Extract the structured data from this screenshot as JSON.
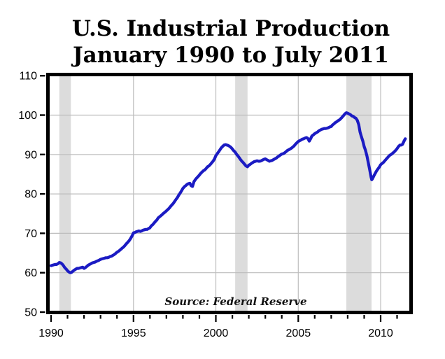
{
  "title": {
    "line1": "U.S. Industrial Production",
    "line2": "January 1990 to July 2011"
  },
  "source_note": "Source: Federal Reserve",
  "colors": {
    "line": "#1b1bc3",
    "recession_band": "#dcdcdc",
    "gridline": "#bdbdbd",
    "axis": "#000000",
    "background": "#ffffff"
  },
  "chart_data": {
    "type": "line",
    "title": "U.S. Industrial Production January 1990 to July 2011",
    "source": "Federal Reserve",
    "xlabel": "",
    "ylabel": "",
    "x_axis": {
      "first_year": 1990,
      "last_year": 2011,
      "data_end": 2011.5,
      "major_ticks": [
        1990,
        1995,
        2000,
        2005,
        2010
      ],
      "tick_labels": [
        "1990",
        "1995",
        "2000",
        "2005",
        "2010"
      ],
      "minor_tick_interval": 1
    },
    "y_axis": {
      "min": 50,
      "max": 110,
      "ticks": [
        50,
        60,
        70,
        80,
        90,
        100,
        110
      ],
      "tick_labels": [
        "50",
        "60",
        "70",
        "80",
        "90",
        "100",
        "110"
      ]
    },
    "gridlines": {
      "horizontal_values": [
        60,
        70,
        80,
        90,
        100
      ],
      "vertical_years": [
        1995,
        2000,
        2005,
        2010
      ]
    },
    "recession_bands": [
      {
        "start": 1990.5,
        "end": 1991.2
      },
      {
        "start": 2001.17,
        "end": 2001.92
      },
      {
        "start": 2007.92,
        "end": 2009.45
      }
    ],
    "series": [
      {
        "name": "U.S. Industrial Production",
        "points": [
          [
            1990.0,
            61.8
          ],
          [
            1990.08,
            61.9
          ],
          [
            1990.17,
            62.0
          ],
          [
            1990.25,
            62.1
          ],
          [
            1990.33,
            62.1
          ],
          [
            1990.42,
            62.3
          ],
          [
            1990.5,
            62.6
          ],
          [
            1990.58,
            62.5
          ],
          [
            1990.67,
            62.2
          ],
          [
            1990.75,
            61.8
          ],
          [
            1990.83,
            61.3
          ],
          [
            1990.92,
            60.9
          ],
          [
            1991.0,
            60.5
          ],
          [
            1991.08,
            60.2
          ],
          [
            1991.17,
            60.0
          ],
          [
            1991.25,
            60.1
          ],
          [
            1991.33,
            60.4
          ],
          [
            1991.42,
            60.7
          ],
          [
            1991.5,
            60.9
          ],
          [
            1991.58,
            61.1
          ],
          [
            1991.67,
            61.1
          ],
          [
            1991.75,
            61.2
          ],
          [
            1991.83,
            61.3
          ],
          [
            1991.92,
            61.4
          ],
          [
            1992.0,
            61.1
          ],
          [
            1992.08,
            61.3
          ],
          [
            1992.17,
            61.6
          ],
          [
            1992.25,
            61.9
          ],
          [
            1992.33,
            62.1
          ],
          [
            1992.42,
            62.3
          ],
          [
            1992.5,
            62.5
          ],
          [
            1992.58,
            62.6
          ],
          [
            1992.67,
            62.7
          ],
          [
            1992.75,
            62.9
          ],
          [
            1992.83,
            63.0
          ],
          [
            1992.92,
            63.2
          ],
          [
            1993.0,
            63.4
          ],
          [
            1993.08,
            63.5
          ],
          [
            1993.17,
            63.6
          ],
          [
            1993.25,
            63.7
          ],
          [
            1993.33,
            63.8
          ],
          [
            1993.42,
            63.8
          ],
          [
            1993.5,
            63.9
          ],
          [
            1993.58,
            64.1
          ],
          [
            1993.67,
            64.2
          ],
          [
            1993.75,
            64.4
          ],
          [
            1993.83,
            64.6
          ],
          [
            1993.92,
            64.9
          ],
          [
            1994.0,
            65.2
          ],
          [
            1994.08,
            65.4
          ],
          [
            1994.17,
            65.7
          ],
          [
            1994.25,
            66.0
          ],
          [
            1994.33,
            66.3
          ],
          [
            1994.42,
            66.6
          ],
          [
            1994.5,
            67.0
          ],
          [
            1994.58,
            67.4
          ],
          [
            1994.67,
            67.8
          ],
          [
            1994.75,
            68.2
          ],
          [
            1994.83,
            68.7
          ],
          [
            1994.92,
            69.4
          ],
          [
            1995.0,
            70.1
          ],
          [
            1995.08,
            70.2
          ],
          [
            1995.17,
            70.4
          ],
          [
            1995.25,
            70.5
          ],
          [
            1995.33,
            70.6
          ],
          [
            1995.42,
            70.5
          ],
          [
            1995.5,
            70.6
          ],
          [
            1995.58,
            70.8
          ],
          [
            1995.67,
            70.9
          ],
          [
            1995.75,
            71.0
          ],
          [
            1995.83,
            71.0
          ],
          [
            1995.92,
            71.2
          ],
          [
            1996.0,
            71.4
          ],
          [
            1996.08,
            71.9
          ],
          [
            1996.17,
            72.2
          ],
          [
            1996.25,
            72.6
          ],
          [
            1996.33,
            73.0
          ],
          [
            1996.42,
            73.4
          ],
          [
            1996.5,
            73.9
          ],
          [
            1996.58,
            74.2
          ],
          [
            1996.67,
            74.5
          ],
          [
            1996.75,
            74.8
          ],
          [
            1996.83,
            75.1
          ],
          [
            1996.92,
            75.4
          ],
          [
            1997.0,
            75.7
          ],
          [
            1997.08,
            76.0
          ],
          [
            1997.17,
            76.4
          ],
          [
            1997.25,
            76.8
          ],
          [
            1997.33,
            77.2
          ],
          [
            1997.42,
            77.6
          ],
          [
            1997.5,
            78.1
          ],
          [
            1997.58,
            78.6
          ],
          [
            1997.67,
            79.1
          ],
          [
            1997.75,
            79.7
          ],
          [
            1997.83,
            80.2
          ],
          [
            1997.92,
            80.8
          ],
          [
            1998.0,
            81.4
          ],
          [
            1998.08,
            81.8
          ],
          [
            1998.17,
            82.1
          ],
          [
            1998.25,
            82.4
          ],
          [
            1998.33,
            82.6
          ],
          [
            1998.42,
            82.7
          ],
          [
            1998.5,
            82.1
          ],
          [
            1998.58,
            81.9
          ],
          [
            1998.67,
            83.1
          ],
          [
            1998.75,
            83.6
          ],
          [
            1998.83,
            84.0
          ],
          [
            1998.92,
            84.4
          ],
          [
            1999.0,
            84.8
          ],
          [
            1999.08,
            85.2
          ],
          [
            1999.17,
            85.6
          ],
          [
            1999.25,
            85.9
          ],
          [
            1999.33,
            86.1
          ],
          [
            1999.42,
            86.5
          ],
          [
            1999.5,
            86.9
          ],
          [
            1999.58,
            87.1
          ],
          [
            1999.67,
            87.5
          ],
          [
            1999.75,
            87.9
          ],
          [
            1999.83,
            88.3
          ],
          [
            1999.92,
            88.9
          ],
          [
            2000.0,
            89.7
          ],
          [
            2000.08,
            90.2
          ],
          [
            2000.17,
            90.7
          ],
          [
            2000.25,
            91.2
          ],
          [
            2000.33,
            91.7
          ],
          [
            2000.42,
            92.1
          ],
          [
            2000.5,
            92.4
          ],
          [
            2000.58,
            92.5
          ],
          [
            2000.67,
            92.4
          ],
          [
            2000.75,
            92.3
          ],
          [
            2000.83,
            92.1
          ],
          [
            2000.92,
            91.8
          ],
          [
            2001.0,
            91.4
          ],
          [
            2001.08,
            91.0
          ],
          [
            2001.17,
            90.6
          ],
          [
            2001.25,
            90.1
          ],
          [
            2001.33,
            89.7
          ],
          [
            2001.42,
            89.2
          ],
          [
            2001.5,
            88.7
          ],
          [
            2001.58,
            88.3
          ],
          [
            2001.67,
            87.9
          ],
          [
            2001.75,
            87.5
          ],
          [
            2001.83,
            87.1
          ],
          [
            2001.92,
            86.9
          ],
          [
            2002.0,
            87.3
          ],
          [
            2002.08,
            87.5
          ],
          [
            2002.17,
            87.8
          ],
          [
            2002.25,
            88.0
          ],
          [
            2002.33,
            88.2
          ],
          [
            2002.42,
            88.3
          ],
          [
            2002.5,
            88.4
          ],
          [
            2002.58,
            88.3
          ],
          [
            2002.67,
            88.3
          ],
          [
            2002.75,
            88.4
          ],
          [
            2002.83,
            88.6
          ],
          [
            2002.92,
            88.8
          ],
          [
            2003.0,
            88.9
          ],
          [
            2003.08,
            88.7
          ],
          [
            2003.17,
            88.5
          ],
          [
            2003.25,
            88.3
          ],
          [
            2003.33,
            88.4
          ],
          [
            2003.42,
            88.5
          ],
          [
            2003.5,
            88.7
          ],
          [
            2003.58,
            88.9
          ],
          [
            2003.67,
            89.1
          ],
          [
            2003.75,
            89.4
          ],
          [
            2003.83,
            89.6
          ],
          [
            2003.92,
            89.9
          ],
          [
            2004.0,
            90.1
          ],
          [
            2004.08,
            90.2
          ],
          [
            2004.17,
            90.4
          ],
          [
            2004.25,
            90.7
          ],
          [
            2004.33,
            91.0
          ],
          [
            2004.42,
            91.2
          ],
          [
            2004.5,
            91.4
          ],
          [
            2004.58,
            91.6
          ],
          [
            2004.67,
            91.9
          ],
          [
            2004.75,
            92.2
          ],
          [
            2004.83,
            92.6
          ],
          [
            2004.92,
            93.0
          ],
          [
            2005.0,
            93.3
          ],
          [
            2005.08,
            93.5
          ],
          [
            2005.17,
            93.7
          ],
          [
            2005.25,
            93.9
          ],
          [
            2005.33,
            94.0
          ],
          [
            2005.42,
            94.2
          ],
          [
            2005.5,
            94.3
          ],
          [
            2005.58,
            94.1
          ],
          [
            2005.67,
            93.4
          ],
          [
            2005.75,
            94.0
          ],
          [
            2005.83,
            94.7
          ],
          [
            2005.92,
            95.0
          ],
          [
            2006.0,
            95.3
          ],
          [
            2006.08,
            95.5
          ],
          [
            2006.17,
            95.7
          ],
          [
            2006.25,
            96.0
          ],
          [
            2006.33,
            96.2
          ],
          [
            2006.42,
            96.4
          ],
          [
            2006.5,
            96.5
          ],
          [
            2006.58,
            96.6
          ],
          [
            2006.67,
            96.6
          ],
          [
            2006.75,
            96.7
          ],
          [
            2006.83,
            96.8
          ],
          [
            2006.92,
            97.0
          ],
          [
            2007.0,
            97.1
          ],
          [
            2007.08,
            97.5
          ],
          [
            2007.17,
            97.8
          ],
          [
            2007.25,
            98.1
          ],
          [
            2007.33,
            98.3
          ],
          [
            2007.42,
            98.6
          ],
          [
            2007.5,
            98.8
          ],
          [
            2007.58,
            99.1
          ],
          [
            2007.67,
            99.5
          ],
          [
            2007.75,
            99.9
          ],
          [
            2007.83,
            100.3
          ],
          [
            2007.92,
            100.6
          ],
          [
            2008.0,
            100.5
          ],
          [
            2008.08,
            100.3
          ],
          [
            2008.17,
            100.1
          ],
          [
            2008.25,
            99.8
          ],
          [
            2008.33,
            99.7
          ],
          [
            2008.42,
            99.4
          ],
          [
            2008.5,
            99.2
          ],
          [
            2008.58,
            98.7
          ],
          [
            2008.67,
            97.6
          ],
          [
            2008.75,
            95.7
          ],
          [
            2008.83,
            94.6
          ],
          [
            2008.92,
            93.4
          ],
          [
            2009.0,
            92.0
          ],
          [
            2009.08,
            91.1
          ],
          [
            2009.17,
            89.6
          ],
          [
            2009.25,
            88.0
          ],
          [
            2009.33,
            86.3
          ],
          [
            2009.42,
            84.3
          ],
          [
            2009.46,
            83.6
          ],
          [
            2009.5,
            83.8
          ],
          [
            2009.58,
            84.5
          ],
          [
            2009.67,
            85.2
          ],
          [
            2009.75,
            85.8
          ],
          [
            2009.83,
            86.3
          ],
          [
            2009.92,
            86.8
          ],
          [
            2010.0,
            87.4
          ],
          [
            2010.08,
            87.7
          ],
          [
            2010.17,
            88.0
          ],
          [
            2010.25,
            88.4
          ],
          [
            2010.33,
            88.8
          ],
          [
            2010.42,
            89.2
          ],
          [
            2010.5,
            89.6
          ],
          [
            2010.58,
            89.9
          ],
          [
            2010.67,
            90.1
          ],
          [
            2010.75,
            90.4
          ],
          [
            2010.83,
            90.7
          ],
          [
            2010.92,
            91.1
          ],
          [
            2011.0,
            91.5
          ],
          [
            2011.08,
            92.0
          ],
          [
            2011.17,
            92.4
          ],
          [
            2011.25,
            92.4
          ],
          [
            2011.33,
            92.6
          ],
          [
            2011.42,
            93.4
          ],
          [
            2011.5,
            94.0
          ]
        ]
      }
    ]
  }
}
